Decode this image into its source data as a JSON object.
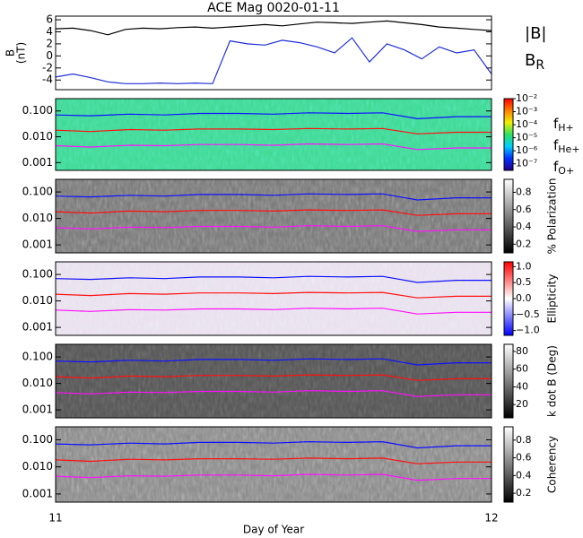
{
  "chart_data": [
    {
      "type": "line",
      "title": "ACE Mag 0020-01-11",
      "ylabel": [
        "B",
        "(nT)"
      ],
      "xlim": [
        11,
        12
      ],
      "ylim": [
        -5.6,
        6.6
      ],
      "yticks": [
        -4,
        -2,
        0,
        2,
        4,
        6
      ],
      "x": [
        11.0,
        11.04,
        11.08,
        11.12,
        11.16,
        11.2,
        11.24,
        11.28,
        11.32,
        11.36,
        11.4,
        11.44,
        11.48,
        11.52,
        11.56,
        11.6,
        11.64,
        11.68,
        11.72,
        11.76,
        11.8,
        11.84,
        11.88,
        11.92,
        11.96,
        12.0
      ],
      "series": [
        {
          "name": "|B|",
          "color": "#000000",
          "values": [
            4.5,
            4.6,
            4.2,
            3.5,
            4.4,
            4.6,
            4.5,
            4.7,
            4.8,
            4.6,
            4.8,
            5.0,
            5.2,
            5.0,
            5.3,
            5.6,
            5.5,
            5.4,
            5.6,
            5.8,
            5.5,
            5.2,
            4.8,
            4.6,
            4.4,
            4.2
          ]
        },
        {
          "name": "B",
          "subscript": "R",
          "color": "#1f2fd8",
          "values": [
            -3.5,
            -3.0,
            -3.6,
            -4.3,
            -4.6,
            -4.6,
            -4.5,
            -4.6,
            -4.5,
            -4.6,
            2.5,
            2.0,
            1.8,
            2.6,
            2.2,
            1.5,
            0.5,
            3.0,
            -1.0,
            2.0,
            1.0,
            -0.5,
            1.5,
            0.5,
            1.0,
            -3.0
          ]
        }
      ]
    },
    {
      "type": "spectrogram",
      "ylog": true,
      "xlim": [
        11,
        12
      ],
      "ylim": [
        0.0005,
        0.3
      ],
      "yticks": [
        0.001,
        {
          "value": 0.01,
          "label": "0.010"
        },
        {
          "value": 0.1,
          "label": "0.100"
        }
      ],
      "background": "#3fd890",
      "legend": true,
      "colorbar": {
        "colors": [
          "#20008a",
          "#0030ff",
          "#00d0ff",
          "#30e060",
          "#f0f000",
          "#ff8000",
          "#ff0000"
        ],
        "lim": [
          -7.5,
          -2
        ],
        "ticks": [
          {
            "value": -2,
            "label": "10⁻²"
          },
          {
            "value": -3,
            "label": "10⁻³"
          },
          {
            "value": -4,
            "label": "10⁻⁴"
          },
          {
            "value": -5,
            "label": "10⁻⁵"
          },
          {
            "value": -6,
            "label": "10⁻⁶"
          },
          {
            "value": -7,
            "label": "10⁻⁷"
          }
        ]
      },
      "x": [
        11.0,
        11.08,
        11.17,
        11.25,
        11.33,
        11.42,
        11.5,
        11.58,
        11.67,
        11.75,
        11.83,
        11.92,
        12.0
      ],
      "series": [
        {
          "name": "f",
          "subscript": "H+",
          "color": "#1010ff",
          "values": [
            0.07,
            0.065,
            0.075,
            0.07,
            0.08,
            0.08,
            0.075,
            0.085,
            0.08,
            0.085,
            0.05,
            0.06,
            0.06
          ]
        },
        {
          "name": "f",
          "subscript": "He+",
          "color": "#ff1010",
          "values": [
            0.018,
            0.016,
            0.019,
            0.018,
            0.02,
            0.02,
            0.019,
            0.021,
            0.02,
            0.021,
            0.013,
            0.015,
            0.015
          ]
        },
        {
          "name": "f",
          "subscript": "O+",
          "color": "#ff10ff",
          "values": [
            0.0045,
            0.004,
            0.0047,
            0.0045,
            0.005,
            0.005,
            0.0047,
            0.0053,
            0.005,
            0.0053,
            0.0032,
            0.0037,
            0.0037
          ]
        }
      ]
    },
    {
      "type": "spectrogram",
      "ylog": true,
      "xlim": [
        11,
        12
      ],
      "ylim": [
        0.0005,
        0.3
      ],
      "yticks": [
        0.001,
        {
          "value": 0.01,
          "label": "0.010"
        },
        {
          "value": 0.1,
          "label": "0.100"
        }
      ],
      "background": "#777777",
      "colorbar": {
        "label": "% Polarization",
        "colors": [
          "#000000",
          "#ffffff"
        ],
        "lim": [
          0.1,
          0.95
        ],
        "ticks": [
          0.2,
          0.4,
          0.6,
          0.8
        ]
      },
      "x": [
        11.0,
        11.08,
        11.17,
        11.25,
        11.33,
        11.42,
        11.5,
        11.58,
        11.67,
        11.75,
        11.83,
        11.92,
        12.0
      ],
      "series": [
        {
          "color": "#1010ff",
          "values": [
            0.07,
            0.065,
            0.075,
            0.07,
            0.08,
            0.08,
            0.075,
            0.085,
            0.08,
            0.085,
            0.05,
            0.06,
            0.06
          ]
        },
        {
          "color": "#ff1010",
          "values": [
            0.018,
            0.016,
            0.019,
            0.018,
            0.02,
            0.02,
            0.019,
            0.021,
            0.02,
            0.021,
            0.013,
            0.015,
            0.015
          ]
        },
        {
          "color": "#ff10ff",
          "values": [
            0.0045,
            0.004,
            0.0047,
            0.0045,
            0.005,
            0.005,
            0.0047,
            0.0053,
            0.005,
            0.0053,
            0.0032,
            0.0037,
            0.0037
          ]
        }
      ]
    },
    {
      "type": "spectrogram",
      "ylog": true,
      "xlim": [
        11,
        12
      ],
      "ylim": [
        0.0005,
        0.3
      ],
      "yticks": [
        0.001,
        {
          "value": 0.01,
          "label": "0.010"
        },
        {
          "value": 0.1,
          "label": "0.100"
        }
      ],
      "background": "#e8e0ee",
      "colorbar": {
        "label": "Ellipticity",
        "colors": [
          "#0000ff",
          "#ffffff",
          "#ff0000"
        ],
        "lim": [
          -1.15,
          1.15
        ],
        "ticks": [
          {
            "value": 1,
            "label": "1.0"
          },
          {
            "value": 0.5,
            "label": "0.5"
          },
          {
            "value": 0,
            "label": "0.0"
          },
          {
            "value": -0.5,
            "label": "−0.5"
          },
          {
            "value": -1,
            "label": "−1.0"
          }
        ]
      },
      "x": [
        11.0,
        11.08,
        11.17,
        11.25,
        11.33,
        11.42,
        11.5,
        11.58,
        11.67,
        11.75,
        11.83,
        11.92,
        12.0
      ],
      "series": [
        {
          "color": "#1010ff",
          "values": [
            0.07,
            0.065,
            0.075,
            0.07,
            0.08,
            0.08,
            0.075,
            0.085,
            0.08,
            0.085,
            0.05,
            0.06,
            0.06
          ]
        },
        {
          "color": "#ff1010",
          "values": [
            0.018,
            0.016,
            0.019,
            0.018,
            0.02,
            0.02,
            0.019,
            0.021,
            0.02,
            0.021,
            0.013,
            0.015,
            0.015
          ]
        },
        {
          "color": "#ff10ff",
          "values": [
            0.0045,
            0.004,
            0.0047,
            0.0045,
            0.005,
            0.005,
            0.0047,
            0.0053,
            0.005,
            0.0053,
            0.0032,
            0.0037,
            0.0037
          ]
        }
      ]
    },
    {
      "type": "spectrogram",
      "ylog": true,
      "xlim": [
        11,
        12
      ],
      "ylim": [
        0.0005,
        0.3
      ],
      "yticks": [
        0.001,
        {
          "value": 0.01,
          "label": "0.010"
        },
        {
          "value": 0.1,
          "label": "0.100"
        }
      ],
      "background": "#555555",
      "colorbar": {
        "label": "k dot B (Deg)",
        "colors": [
          "#000000",
          "#ffffff"
        ],
        "lim": [
          5,
          88
        ],
        "ticks": [
          20,
          40,
          60,
          80
        ]
      },
      "x": [
        11.0,
        11.08,
        11.17,
        11.25,
        11.33,
        11.42,
        11.5,
        11.58,
        11.67,
        11.75,
        11.83,
        11.92,
        12.0
      ],
      "series": [
        {
          "color": "#1010ff",
          "values": [
            0.07,
            0.065,
            0.075,
            0.07,
            0.08,
            0.08,
            0.075,
            0.085,
            0.08,
            0.085,
            0.05,
            0.06,
            0.06
          ]
        },
        {
          "color": "#ff1010",
          "values": [
            0.018,
            0.016,
            0.019,
            0.018,
            0.02,
            0.02,
            0.019,
            0.021,
            0.02,
            0.021,
            0.013,
            0.015,
            0.015
          ]
        },
        {
          "color": "#ff10ff",
          "values": [
            0.0045,
            0.004,
            0.0047,
            0.0045,
            0.005,
            0.005,
            0.0047,
            0.0053,
            0.005,
            0.0053,
            0.0032,
            0.0037,
            0.0037
          ]
        }
      ]
    },
    {
      "type": "spectrogram",
      "ylog": true,
      "xlim": [
        11,
        12
      ],
      "ylim": [
        0.0005,
        0.3
      ],
      "yticks": [
        0.001,
        {
          "value": 0.01,
          "label": "0.010"
        },
        {
          "value": 0.1,
          "label": "0.100"
        }
      ],
      "background": "#888888",
      "xticks": [
        11,
        12
      ],
      "xlabel": "Day of Year",
      "colorbar": {
        "label": "Coherency",
        "colors": [
          "#000000",
          "#ffffff"
        ],
        "lim": [
          0.1,
          0.95
        ],
        "ticks": [
          0.2,
          0.4,
          0.6,
          0.8
        ]
      },
      "x": [
        11.0,
        11.08,
        11.17,
        11.25,
        11.33,
        11.42,
        11.5,
        11.58,
        11.67,
        11.75,
        11.83,
        11.92,
        12.0
      ],
      "series": [
        {
          "color": "#1010ff",
          "values": [
            0.07,
            0.065,
            0.075,
            0.07,
            0.08,
            0.08,
            0.075,
            0.085,
            0.08,
            0.085,
            0.05,
            0.06,
            0.06
          ]
        },
        {
          "color": "#ff1010",
          "values": [
            0.018,
            0.016,
            0.019,
            0.018,
            0.02,
            0.02,
            0.019,
            0.021,
            0.02,
            0.021,
            0.013,
            0.015,
            0.015
          ]
        },
        {
          "color": "#ff10ff",
          "values": [
            0.0045,
            0.004,
            0.0047,
            0.0045,
            0.005,
            0.005,
            0.0047,
            0.0053,
            0.005,
            0.0053,
            0.0032,
            0.0037,
            0.0037
          ]
        }
      ]
    }
  ]
}
